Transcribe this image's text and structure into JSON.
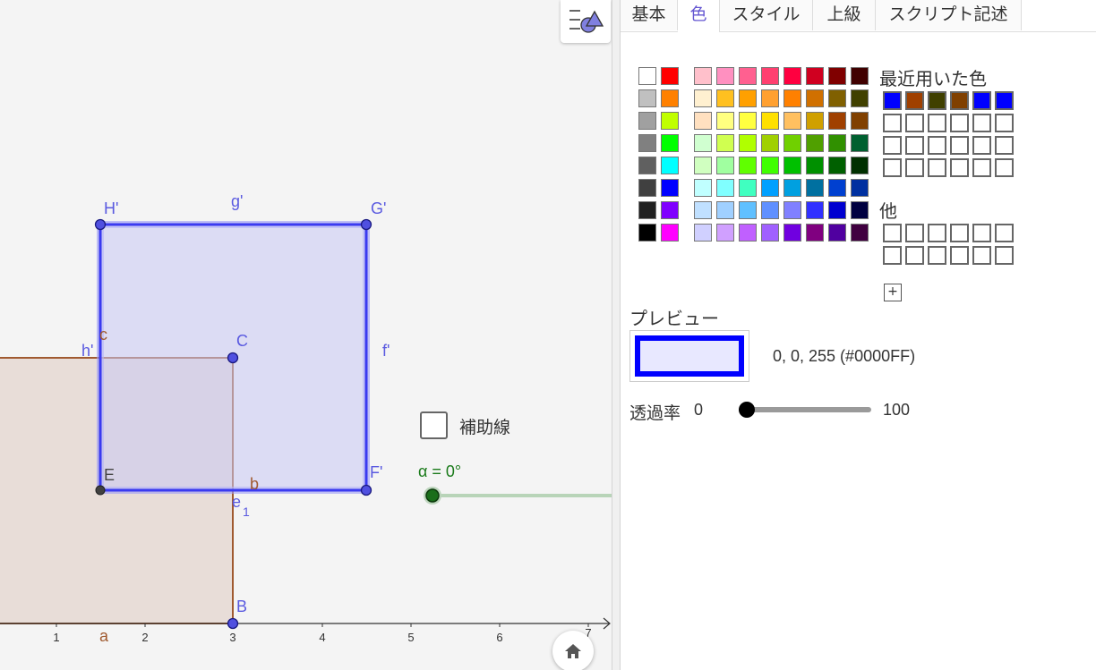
{
  "graphics": {
    "points": {
      "H_prime": "H'",
      "G_prime": "G'",
      "F_prime": "F'",
      "E": "E",
      "C": "C",
      "B": "B",
      "g_prime": "g'",
      "f_prime": "f'",
      "h_prime": "h'",
      "c": "c",
      "b": "b",
      "e1_e": "e",
      "e1_sub": "1",
      "a": "a"
    },
    "axis_ticks": [
      "1",
      "2",
      "3",
      "4",
      "5",
      "6",
      "7"
    ],
    "aux_checkbox_label": "補助線",
    "slider_label": "α = 0°",
    "colors": {
      "blue_square": "#3a3af0",
      "blue_fill": "#dcdcf4",
      "brown_square": "#a05a30",
      "brown_fill": "#e8ddd8",
      "slider": "#1a6e1a"
    }
  },
  "panel": {
    "tabs": [
      "基本",
      "色",
      "スタイル",
      "上級",
      "スクリプト記述"
    ],
    "active_tab": "色",
    "recent_colors_label": "最近用いた色",
    "other_label": "他",
    "add_button": "+",
    "preview_label": "プレビュー",
    "preview_value": "0, 0, 255 (#0000FF)",
    "opacity_label": "透過率",
    "opacity_min": "0",
    "opacity_max": "100",
    "opacity_value": 0,
    "gray_column_1": [
      "#ffffff",
      "#c0c0c0",
      "#a0a0a0",
      "#808080",
      "#606060",
      "#404040",
      "#202020",
      "#000000"
    ],
    "bright_column": [
      "#ff0000",
      "#ff8000",
      "#c0ff00",
      "#00ff00",
      "#00ffff",
      "#0000ff",
      "#8000ff",
      "#ff00ff"
    ],
    "palette": [
      [
        "#ffc0cb",
        "#ff90c0",
        "#ff6090",
        "#ff4070",
        "#ff0040",
        "#d00020",
        "#800000",
        "#400000"
      ],
      [
        "#fff0d0",
        "#ffc020",
        "#ffa000",
        "#ffa030",
        "#ff8000",
        "#d07000",
        "#806000",
        "#404000"
      ],
      [
        "#ffe0c0",
        "#ffff80",
        "#ffff40",
        "#ffe000",
        "#ffc060",
        "#d0a000",
        "#a04000",
        "#804000"
      ],
      [
        "#d0ffd0",
        "#d0ff50",
        "#b0ff00",
        "#a0d000",
        "#70d000",
        "#50a000",
        "#309000",
        "#006030"
      ],
      [
        "#d0ffc0",
        "#a0ffa0",
        "#60ff00",
        "#40ff00",
        "#00c000",
        "#009000",
        "#006000",
        "#003000"
      ],
      [
        "#c0ffff",
        "#80ffff",
        "#40ffc0",
        "#00a0ff",
        "#00a0e0",
        "#0070a0",
        "#0040d0",
        "#0030a0"
      ],
      [
        "#c0e0ff",
        "#a0d0ff",
        "#60c0ff",
        "#6090ff",
        "#8080ff",
        "#3030ff",
        "#0000d0",
        "#000040"
      ],
      [
        "#d0d0ff",
        "#d0a0ff",
        "#c060ff",
        "#a060ff",
        "#7000e0",
        "#800080",
        "#5000a0",
        "#400040"
      ]
    ],
    "recent": [
      "#0000ff",
      "#a04000",
      "#404000",
      "#804000",
      "#0000ff",
      "#0000ff"
    ]
  }
}
